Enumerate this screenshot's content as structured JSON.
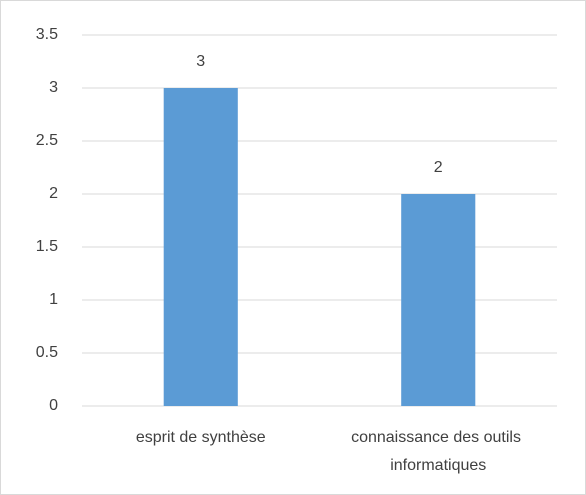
{
  "chart_data": {
    "type": "bar",
    "categories": [
      "esprit de synthèse",
      "connaissance des outils informatiques"
    ],
    "values": [
      3,
      2
    ],
    "color": "#5b9bd5",
    "ylim": [
      0,
      3.5
    ],
    "yticks": [
      0,
      0.5,
      1,
      1.5,
      2,
      2.5,
      3,
      3.5
    ],
    "grid": true
  }
}
